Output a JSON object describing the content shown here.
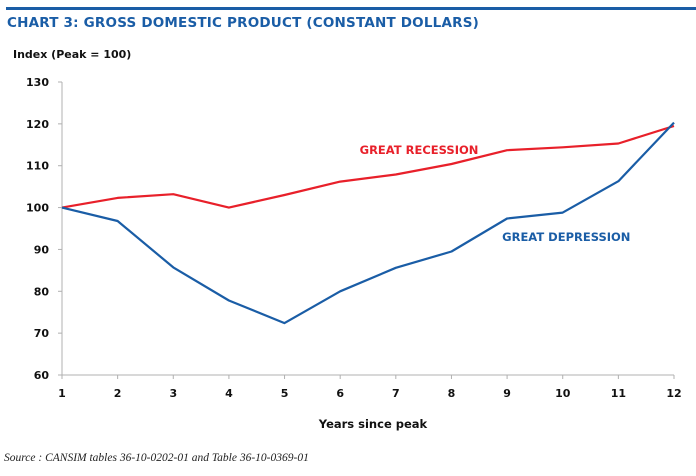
{
  "title": "CHART 3: GROSS DOMESTIC PRODUCT  (CONSTANT DOLLARS)",
  "source": "Source : CANSIM tables 36-10-0202-01 and Table 36-10-0369-01",
  "chart_data": {
    "type": "line",
    "title": "CHART 3: GROSS DOMESTIC PRODUCT  (CONSTANT DOLLARS)",
    "xlabel": "Years since peak",
    "ylabel": "Index (Peak = 100)",
    "x": [
      1,
      2,
      3,
      4,
      5,
      6,
      7,
      8,
      9,
      10,
      11,
      12
    ],
    "x_tick_labels": [
      "1",
      "2",
      "3",
      "4",
      "5",
      "6",
      "7",
      "8",
      "9",
      "10",
      "11",
      "12"
    ],
    "ylim": [
      60,
      130
    ],
    "y_ticks": [
      60,
      70,
      80,
      90,
      100,
      110,
      120,
      130
    ],
    "y_tick_labels": [
      "60",
      "70",
      "80",
      "90",
      "100",
      "110",
      "120",
      "130"
    ],
    "grid": false,
    "legend": "inline labels",
    "series": [
      {
        "name": "GREAT RECESSION",
        "color": "#e8202a",
        "values": [
          100,
          102.3,
          103.2,
          100.0,
          103.0,
          106.2,
          107.9,
          110.4,
          113.7,
          114.4,
          115.3,
          119.5
        ]
      },
      {
        "name": "GREAT DEPRESSION",
        "color": "#1a5da6",
        "values": [
          100,
          96.8,
          85.7,
          77.8,
          72.4,
          80.0,
          85.6,
          89.5,
          97.4,
          98.8,
          106.3,
          120.3
        ]
      }
    ]
  }
}
